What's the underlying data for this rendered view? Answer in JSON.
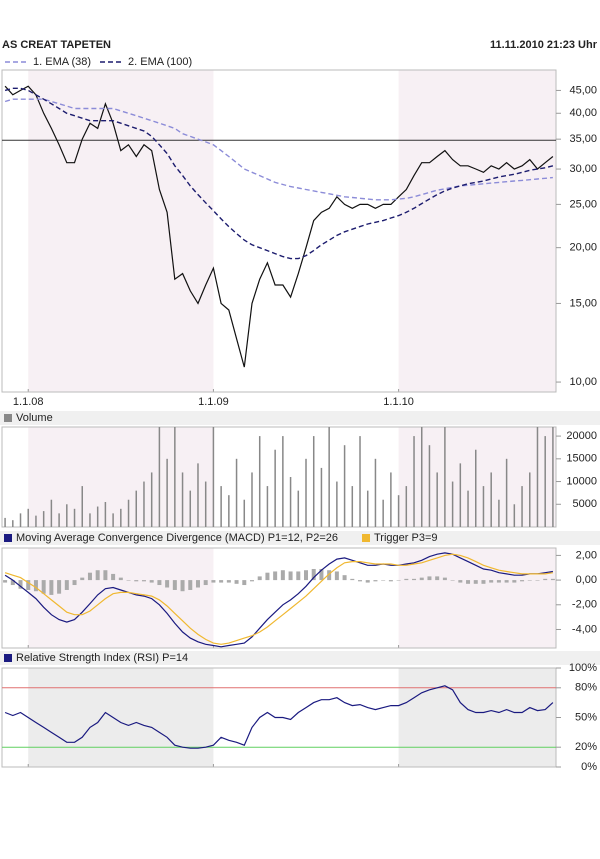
{
  "header": {
    "title": "AS CREAT TAPETEN",
    "timestamp": "11.11.2010 21:23 Uhr"
  },
  "chart_data": [
    {
      "type": "line",
      "log": true,
      "band_color": "#f7f0f4",
      "x": [
        -1.5,
        -1,
        -0.5,
        0,
        0.5,
        1,
        1.5,
        2,
        2.5,
        3,
        3.5,
        4,
        4.5,
        5,
        5.5,
        6,
        6.5,
        7,
        7.5,
        8,
        8.5,
        9,
        9.5,
        10,
        10.5,
        11,
        11.5,
        12,
        12.5,
        13,
        13.5,
        14,
        14.5,
        15,
        15.5,
        16,
        16.5,
        17,
        17.5,
        18,
        18.5,
        19,
        19.5,
        20,
        20.5,
        21,
        21.5,
        22,
        22.5,
        23,
        23.5,
        24,
        24.5,
        25,
        25.5,
        26,
        26.5,
        27,
        27.5,
        28,
        28.5,
        29,
        29.5,
        30,
        30.5,
        31,
        31.5,
        32,
        32.5,
        33,
        33.5,
        34
      ],
      "xlim": [
        -1.7,
        34.2
      ],
      "xticks": [
        {
          "value": 0,
          "label": "1.1.08"
        },
        {
          "value": 12,
          "label": "1.1.09"
        },
        {
          "value": 24,
          "label": "1.1.10"
        }
      ],
      "ylim": [
        9.5,
        50
      ],
      "yticks": [
        {
          "value": 10,
          "label": "10,00"
        },
        {
          "value": 15,
          "label": "15,00"
        },
        {
          "value": 20,
          "label": "20,00"
        },
        {
          "value": 25,
          "label": "25,00"
        },
        {
          "value": 30,
          "label": "30,00"
        },
        {
          "value": 35,
          "label": "35,00"
        },
        {
          "value": 40,
          "label": "40,00"
        },
        {
          "value": 45,
          "label": "45,00"
        }
      ],
      "hlines": [
        {
          "value": 34.8,
          "color": "#333333"
        }
      ],
      "series": [
        {
          "color": "#111111",
          "dash": false,
          "values": [
            46,
            44,
            45,
            46,
            44,
            40,
            37,
            34,
            31,
            31,
            35,
            38,
            37,
            42,
            38,
            33,
            34,
            32,
            34,
            33,
            27,
            24,
            17,
            17.5,
            16,
            15,
            16.5,
            18,
            15,
            14.5,
            12.5,
            10.8,
            15,
            17,
            18.5,
            16.5,
            16.5,
            15.5,
            17.5,
            20,
            23,
            24,
            24.5,
            26,
            25,
            24.5,
            25,
            25,
            24.5,
            25,
            25,
            26,
            27,
            29,
            31,
            31,
            32,
            33,
            31.5,
            30.5,
            30.5,
            30,
            29.5,
            30.5,
            30,
            31,
            30,
            30.5,
            31.5,
            30,
            31,
            32
          ]
        },
        {
          "name": "1. EMA (38)",
          "color": "#8c8cd8",
          "dash": true,
          "values": [
            42.5,
            43,
            43,
            43,
            43,
            43,
            42.5,
            42,
            41.5,
            41,
            41,
            41,
            41,
            41,
            41,
            40.5,
            40,
            39.5,
            39,
            38.5,
            38,
            37.5,
            37,
            36,
            35.5,
            35,
            34.5,
            34,
            33,
            32,
            31,
            30,
            29.5,
            29,
            28.5,
            28,
            27.7,
            27.4,
            27.2,
            27,
            26.8,
            26.6,
            26.4,
            26.2,
            26,
            25.9,
            25.8,
            25.7,
            25.6,
            25.6,
            25.6,
            25.7,
            25.8,
            26,
            26.3,
            26.6,
            26.9,
            27.1,
            27.3,
            27.5,
            27.6,
            27.7,
            27.8,
            27.9,
            28,
            28.1,
            28.2,
            28.3,
            28.4,
            28.5,
            28.6,
            28.7
          ]
        },
        {
          "name": "2. EMA (100)",
          "color": "#1c1c6e",
          "dash": true,
          "values": [
            45,
            45.5,
            45.5,
            45,
            44,
            43,
            42,
            41,
            40,
            39.5,
            39,
            38.5,
            38.5,
            38.5,
            38.5,
            38,
            37.5,
            37,
            36.5,
            35.5,
            34,
            32.5,
            30.5,
            29,
            27.5,
            26.3,
            25.2,
            24.2,
            23.2,
            22.3,
            21.5,
            20.8,
            20.3,
            20,
            19.7,
            19.4,
            19.1,
            18.9,
            18.9,
            19.2,
            19.7,
            20.3,
            20.8,
            21.3,
            21.7,
            22,
            22.3,
            22.6,
            22.8,
            23,
            23.3,
            23.6,
            24,
            24.5,
            25.1,
            25.7,
            26.3,
            26.8,
            27.2,
            27.5,
            27.8,
            28,
            28.2,
            28.5,
            28.8,
            29,
            29.2,
            29.5,
            29.8,
            30,
            30.2,
            30.5
          ]
        }
      ]
    },
    {
      "type": "bar",
      "band_color": "#f7f0f4",
      "xlim": [
        -1.7,
        34.2
      ],
      "ylim": [
        0,
        22000
      ],
      "yticks": [
        5000,
        10000,
        15000,
        20000
      ],
      "x": [
        -1.5,
        -1,
        -0.5,
        0,
        0.5,
        1,
        1.5,
        2,
        2.5,
        3,
        3.5,
        4,
        4.5,
        5,
        5.5,
        6,
        6.5,
        7,
        7.5,
        8,
        8.5,
        9,
        9.5,
        10,
        10.5,
        11,
        11.5,
        12,
        12.5,
        13,
        13.5,
        14,
        14.5,
        15,
        15.5,
        16,
        16.5,
        17,
        17.5,
        18,
        18.5,
        19,
        19.5,
        20,
        20.5,
        21,
        21.5,
        22,
        22.5,
        23,
        23.5,
        24,
        24.5,
        25,
        25.5,
        26,
        26.5,
        27,
        27.5,
        28,
        28.5,
        29,
        29.5,
        30,
        30.5,
        31,
        31.5,
        32,
        32.5,
        33,
        33.5,
        34
      ],
      "series": [
        {
          "name": "Volume",
          "color": "#888888",
          "values": [
            2000,
            1500,
            3000,
            4000,
            2500,
            3500,
            6000,
            3000,
            5000,
            4000,
            9000,
            3000,
            4500,
            5500,
            3000,
            4000,
            6000,
            8000,
            10000,
            12000,
            22000,
            15000,
            22000,
            12000,
            8000,
            14000,
            10000,
            22000,
            9000,
            7000,
            15000,
            6000,
            12000,
            20000,
            9000,
            17000,
            20000,
            11000,
            8000,
            15000,
            20000,
            13000,
            22000,
            10000,
            18000,
            9000,
            20000,
            8000,
            15000,
            6000,
            12000,
            7000,
            9000,
            20000,
            22000,
            18000,
            12000,
            22000,
            10000,
            14000,
            8000,
            17000,
            9000,
            12000,
            6000,
            15000,
            5000,
            9000,
            12000,
            22000,
            20000,
            22000
          ]
        }
      ]
    },
    {
      "type": "line",
      "band_color": "#f7f0f4",
      "xlim": [
        -1.7,
        34.2
      ],
      "ylim": [
        -5.5,
        2.6
      ],
      "yticks": [
        {
          "value": 2,
          "label": "2,00"
        },
        {
          "value": 0,
          "label": "0,00"
        },
        {
          "value": -2,
          "label": "-2,00"
        },
        {
          "value": -4,
          "label": "-4,00"
        }
      ],
      "x": [
        -1.5,
        -1,
        -0.5,
        0,
        0.5,
        1,
        1.5,
        2,
        2.5,
        3,
        3.5,
        4,
        4.5,
        5,
        5.5,
        6,
        6.5,
        7,
        7.5,
        8,
        8.5,
        9,
        9.5,
        10,
        10.5,
        11,
        11.5,
        12,
        12.5,
        13,
        13.5,
        14,
        14.5,
        15,
        15.5,
        16,
        16.5,
        17,
        17.5,
        18,
        18.5,
        19,
        19.5,
        20,
        20.5,
        21,
        21.5,
        22,
        22.5,
        23,
        23.5,
        24,
        24.5,
        25,
        25.5,
        26,
        26.5,
        27,
        27.5,
        28,
        28.5,
        29,
        29.5,
        30,
        30.5,
        31,
        31.5,
        32,
        32.5,
        33,
        33.5,
        34
      ],
      "histogram": {
        "color": "#aaaaaa",
        "values": [
          -0.2,
          -0.4,
          -0.7,
          -0.8,
          -0.9,
          -1.1,
          -1.2,
          -1.1,
          -0.8,
          -0.4,
          0.2,
          0.6,
          0.8,
          0.8,
          0.5,
          0.2,
          0,
          -0.1,
          -0.1,
          -0.2,
          -0.4,
          -0.6,
          -0.8,
          -0.9,
          -0.8,
          -0.6,
          -0.4,
          -0.2,
          -0.2,
          -0.2,
          -0.3,
          -0.4,
          -0.1,
          0.3,
          0.6,
          0.7,
          0.8,
          0.7,
          0.7,
          0.8,
          0.9,
          0.9,
          0.8,
          0.7,
          0.4,
          0.1,
          -0.1,
          -0.2,
          -0.1,
          0,
          -0.1,
          0,
          0.1,
          0.1,
          0.2,
          0.3,
          0.3,
          0.2,
          0,
          -0.2,
          -0.3,
          -0.3,
          -0.3,
          -0.2,
          -0.2,
          -0.2,
          -0.2,
          -0.1,
          0,
          0,
          0.1,
          0.1
        ]
      },
      "series": [
        {
          "name": "Moving Average Convergence Divergence (MACD) P1=12, P2=26",
          "color": "#1a1a80",
          "dash": false,
          "values": [
            0.4,
            0,
            -0.5,
            -1,
            -1.5,
            -2.2,
            -2.8,
            -3.2,
            -3.4,
            -3.2,
            -2.6,
            -1.9,
            -1.2,
            -0.7,
            -0.6,
            -0.8,
            -1,
            -1.2,
            -1.3,
            -1.5,
            -2,
            -2.7,
            -3.5,
            -4.2,
            -4.7,
            -5,
            -5.2,
            -5.3,
            -5.4,
            -5.3,
            -5.2,
            -5.1,
            -4.6,
            -3.9,
            -3.2,
            -2.6,
            -2,
            -1.6,
            -1.1,
            -0.5,
            0.2,
            0.8,
            1.3,
            1.7,
            1.8,
            1.6,
            1.4,
            1.2,
            1.2,
            1.3,
            1.2,
            1.2,
            1.3,
            1.4,
            1.6,
            1.9,
            2.1,
            2.2,
            2.1,
            1.8,
            1.5,
            1.2,
            0.9,
            0.8,
            0.6,
            0.5,
            0.4,
            0.4,
            0.5,
            0.5,
            0.6,
            0.7
          ]
        },
        {
          "name": "Trigger P3=9",
          "color": "#f0b830",
          "dash": false,
          "values": [
            0.6,
            0.4,
            0.2,
            -0.2,
            -0.6,
            -1.1,
            -1.6,
            -2.1,
            -2.6,
            -2.8,
            -2.8,
            -2.5,
            -2,
            -1.5,
            -1.1,
            -1,
            -1,
            -1.1,
            -1.2,
            -1.3,
            -1.6,
            -2.1,
            -2.7,
            -3.3,
            -3.9,
            -4.4,
            -4.8,
            -5.1,
            -5.2,
            -5.1,
            -4.9,
            -4.7,
            -4.5,
            -4.2,
            -3.8,
            -3.3,
            -2.8,
            -2.3,
            -1.8,
            -1.3,
            -0.7,
            -0.1,
            0.5,
            1,
            1.4,
            1.5,
            1.5,
            1.4,
            1.3,
            1.3,
            1.3,
            1.2,
            1.2,
            1.3,
            1.4,
            1.6,
            1.8,
            2,
            2.1,
            2,
            1.8,
            1.5,
            1.2,
            1,
            0.8,
            0.7,
            0.6,
            0.5,
            0.5,
            0.5,
            0.5,
            0.6
          ]
        }
      ]
    },
    {
      "type": "line",
      "band_color": "#ececec",
      "xlim": [
        -1.7,
        34.2
      ],
      "ylim": [
        0,
        100
      ],
      "yticks": [
        {
          "value": 100,
          "label": "100%"
        },
        {
          "value": 80,
          "label": "80%"
        },
        {
          "value": 50,
          "label": "50%"
        },
        {
          "value": 20,
          "label": "20%"
        },
        {
          "value": 0,
          "label": "0%"
        }
      ],
      "hlines": [
        {
          "value": 80,
          "color": "#e07070"
        },
        {
          "value": 20,
          "color": "#60d060"
        }
      ],
      "x": [
        -1.5,
        -1,
        -0.5,
        0,
        0.5,
        1,
        1.5,
        2,
        2.5,
        3,
        3.5,
        4,
        4.5,
        5,
        5.5,
        6,
        6.5,
        7,
        7.5,
        8,
        8.5,
        9,
        9.5,
        10,
        10.5,
        11,
        11.5,
        12,
        12.5,
        13,
        13.5,
        14,
        14.5,
        15,
        15.5,
        16,
        16.5,
        17,
        17.5,
        18,
        18.5,
        19,
        19.5,
        20,
        20.5,
        21,
        21.5,
        22,
        22.5,
        23,
        23.5,
        24,
        24.5,
        25,
        25.5,
        26,
        26.5,
        27,
        27.5,
        28,
        28.5,
        29,
        29.5,
        30,
        30.5,
        31,
        31.5,
        32,
        32.5,
        33,
        33.5,
        34
      ],
      "series": [
        {
          "name": "Relative Strength Index (RSI) P=14",
          "color": "#1a1a80",
          "dash": false,
          "values": [
            55,
            52,
            55,
            50,
            45,
            40,
            35,
            30,
            25,
            25,
            30,
            40,
            45,
            55,
            50,
            45,
            42,
            45,
            42,
            40,
            35,
            30,
            22,
            20,
            19,
            19,
            20,
            22,
            30,
            27,
            25,
            22,
            40,
            50,
            55,
            50,
            50,
            48,
            55,
            60,
            65,
            68,
            68,
            70,
            65,
            62,
            63,
            60,
            58,
            60,
            62,
            62,
            65,
            70,
            75,
            78,
            80,
            82,
            78,
            65,
            58,
            55,
            55,
            57,
            55,
            58,
            55,
            55,
            60,
            57,
            58,
            65
          ]
        }
      ]
    }
  ]
}
